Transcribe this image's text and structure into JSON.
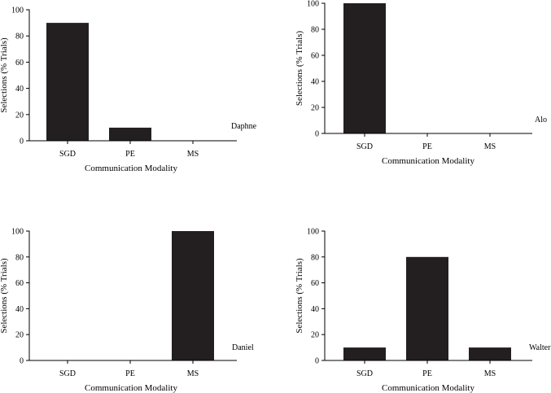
{
  "chart_data": [
    {
      "type": "bar",
      "participant": "Daphne",
      "categories": [
        "SGD",
        "PE",
        "MS"
      ],
      "values": [
        90,
        10,
        0
      ],
      "xlabel": "Communication Modality",
      "ylabel": "Selections (% Trials)",
      "ylim": [
        0,
        100
      ],
      "yticks": [
        0,
        20,
        40,
        60,
        80,
        100
      ],
      "bar_color": "#231f20"
    },
    {
      "type": "bar",
      "participant": "Alo",
      "categories": [
        "SGD",
        "PE",
        "MS"
      ],
      "values": [
        100,
        0,
        0
      ],
      "xlabel": "Communication Modality",
      "ylabel": "Selections (% Trials)",
      "ylim": [
        0,
        100
      ],
      "yticks": [
        0,
        20,
        40,
        60,
        80,
        100
      ],
      "bar_color": "#231f20"
    },
    {
      "type": "bar",
      "participant": "Daniel",
      "categories": [
        "SGD",
        "PE",
        "MS"
      ],
      "values": [
        0,
        0,
        100
      ],
      "xlabel": "Communication Modality",
      "ylabel": "Selections (% Trials)",
      "ylim": [
        0,
        100
      ],
      "yticks": [
        0,
        20,
        40,
        60,
        80,
        100
      ],
      "bar_color": "#231f20"
    },
    {
      "type": "bar",
      "participant": "Walter",
      "categories": [
        "SGD",
        "PE",
        "MS"
      ],
      "values": [
        10,
        80,
        10
      ],
      "xlabel": "Communication Modality",
      "ylabel": "Selections (% Trials)",
      "ylim": [
        0,
        100
      ],
      "yticks": [
        0,
        20,
        40,
        60,
        80,
        100
      ],
      "bar_color": "#231f20"
    }
  ]
}
